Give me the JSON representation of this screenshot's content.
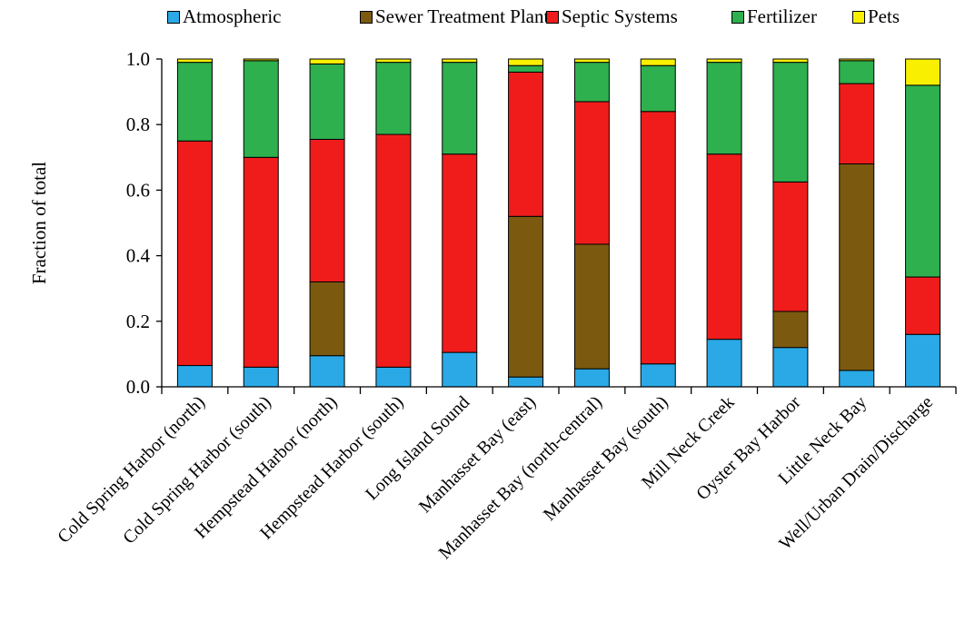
{
  "chart_data": {
    "type": "bar",
    "stacked": true,
    "ylabel": "Fraction of total",
    "ylim": [
      0,
      1.0
    ],
    "yticks": [
      "0.0",
      "0.2",
      "0.4",
      "0.6",
      "0.8",
      "1.0"
    ],
    "grid": false,
    "legend_position": "top",
    "categories": [
      "Cold Spring Harbor (north)",
      "Cold Spring Harbor (south)",
      "Hempstead Harbor (north)",
      "Hempstead Harbor (south)",
      "Long Island Sound",
      "Manhasset Bay (east)",
      "Manhasset Bay (north-central)",
      "Manhasset Bay (south)",
      "Mill Neck Creek",
      "Oyster Bay Harbor",
      "Little Neck Bay",
      "Well/Urban Drain/Discharge"
    ],
    "series": [
      {
        "name": "Atmospheric",
        "color": "#2aa9e6",
        "values": [
          0.065,
          0.06,
          0.095,
          0.06,
          0.105,
          0.03,
          0.055,
          0.07,
          0.145,
          0.12,
          0.05,
          0.16
        ]
      },
      {
        "name": "Sewer Treatment Plants",
        "color": "#7b5a10",
        "values": [
          0.0,
          0.0,
          0.225,
          0.0,
          0.0,
          0.49,
          0.38,
          0.0,
          0.0,
          0.11,
          0.63,
          0.0
        ]
      },
      {
        "name": "Septic Systems",
        "color": "#f01c1c",
        "values": [
          0.685,
          0.64,
          0.435,
          0.71,
          0.605,
          0.44,
          0.435,
          0.77,
          0.565,
          0.395,
          0.245,
          0.175
        ]
      },
      {
        "name": "Fertilizer",
        "color": "#2eb04e",
        "values": [
          0.24,
          0.295,
          0.23,
          0.22,
          0.28,
          0.02,
          0.12,
          0.14,
          0.28,
          0.365,
          0.07,
          0.585
        ]
      },
      {
        "name": "Pets",
        "color": "#f8f000",
        "values": [
          0.01,
          0.005,
          0.015,
          0.01,
          0.01,
          0.02,
          0.01,
          0.02,
          0.01,
          0.01,
          0.005,
          0.08
        ]
      }
    ]
  }
}
